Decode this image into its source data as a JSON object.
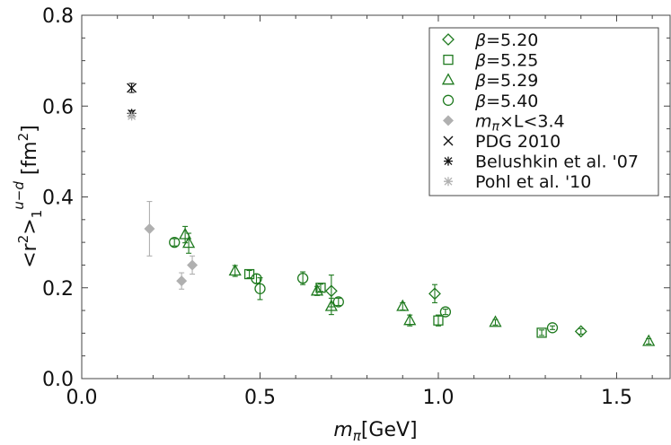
{
  "chart_data": {
    "type": "scatter",
    "xlabel_math": "m",
    "xlabel_sub": "π",
    "xlabel_unit": "[GeV]",
    "ylabel_pre": "<r",
    "ylabel_sup": "2",
    "ylabel_close": ">",
    "ylabel_sub": "1",
    "ylabel_sup2": "u−d",
    "ylabel_unit": " [fm",
    "ylabel_unit_sup": "2",
    "ylabel_unit_end": "]",
    "xlim": [
      0.0,
      1.65
    ],
    "ylim": [
      0.0,
      0.8
    ],
    "xticks": [
      0.0,
      0.5,
      1.0,
      1.5
    ],
    "xtick_labels": [
      "0.0",
      "0.5",
      "1.0",
      "1.5"
    ],
    "yticks": [
      0.0,
      0.2,
      0.4,
      0.6,
      0.8
    ],
    "ytick_labels": [
      "0.0",
      "0.2",
      "0.4",
      "0.6",
      "0.8"
    ],
    "legend_position": "top-right",
    "colors": {
      "green": "#1f7a1f",
      "gray": "#b0b0b0",
      "black": "#111111"
    },
    "series": [
      {
        "name": "β=5.20",
        "legend": "β=5.20",
        "marker": "diamond",
        "color": "green",
        "points": [
          [
            0.7,
            0.193,
            0.035
          ],
          [
            0.99,
            0.187,
            0.02
          ],
          [
            1.4,
            0.104,
            0.006
          ]
        ]
      },
      {
        "name": "β=5.25",
        "legend": "β=5.25",
        "marker": "square",
        "color": "green",
        "points": [
          [
            0.47,
            0.23,
            0.008
          ],
          [
            0.67,
            0.2,
            0.008
          ],
          [
            1.0,
            0.128,
            0.012
          ],
          [
            1.29,
            0.101,
            0.006
          ]
        ]
      },
      {
        "name": "β=5.29",
        "legend": "β=5.29",
        "marker": "triangle",
        "color": "green",
        "points": [
          [
            0.29,
            0.317,
            0.018
          ],
          [
            0.3,
            0.298,
            0.022
          ],
          [
            0.43,
            0.237,
            0.012
          ],
          [
            0.66,
            0.193,
            0.01
          ],
          [
            0.7,
            0.159,
            0.018
          ],
          [
            0.9,
            0.159,
            0.008
          ],
          [
            0.92,
            0.128,
            0.012
          ],
          [
            1.16,
            0.124,
            0.006
          ],
          [
            1.59,
            0.082,
            0.006
          ]
        ]
      },
      {
        "name": "β=5.40",
        "legend": "β=5.40",
        "marker": "circle",
        "color": "green",
        "points": [
          [
            0.26,
            0.3,
            0.008
          ],
          [
            0.49,
            0.22,
            0.01
          ],
          [
            0.5,
            0.198,
            0.024
          ],
          [
            0.62,
            0.221,
            0.014
          ],
          [
            0.72,
            0.169,
            0.008
          ],
          [
            1.02,
            0.147,
            0.006
          ],
          [
            1.32,
            0.112,
            0.004
          ]
        ]
      },
      {
        "name": "mπ×L<3.4",
        "legend_math": "m",
        "legend_sub": "π",
        "legend_rest": "×L<3.4",
        "marker": "filled-diamond",
        "color": "gray",
        "points": [
          [
            0.19,
            0.33,
            0.06
          ],
          [
            0.28,
            0.215,
            0.018
          ],
          [
            0.31,
            0.25,
            0.02
          ]
        ]
      },
      {
        "name": "PDG 2010",
        "legend": "PDG 2010",
        "marker": "x",
        "color": "black",
        "points": [
          [
            0.14,
            0.64,
            0.01
          ]
        ]
      },
      {
        "name": "Belushkin et al. '07",
        "legend": "Belushkin et al. '07",
        "marker": "asterisk",
        "color": "black",
        "points": [
          [
            0.14,
            0.584,
            0.006
          ]
        ]
      },
      {
        "name": "Pohl et al. '10",
        "legend": "Pohl et al. '10",
        "marker": "asterisk",
        "color": "gray",
        "points": [
          [
            0.14,
            0.578,
            0.004
          ]
        ]
      }
    ]
  }
}
